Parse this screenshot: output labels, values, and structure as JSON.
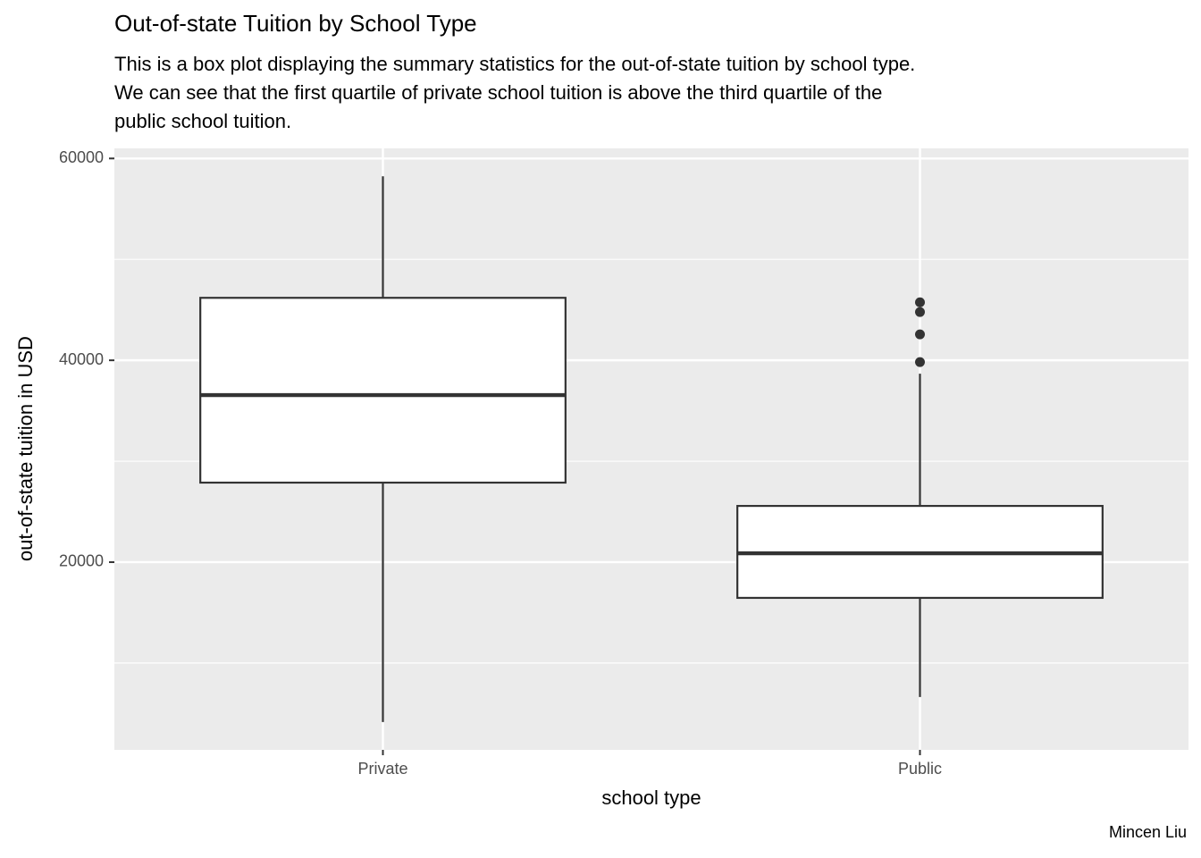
{
  "chart_data": {
    "type": "box",
    "title": "Out-of-state Tuition by School Type",
    "subtitle_lines": [
      "This is a box plot displaying the summary statistics for the out-of-state tuition by school type.",
      "We can see that the first quartile of private school tuition is above the third quartile of the",
      "public school tuition."
    ],
    "caption": "Mincen Liu",
    "x_label": "school type",
    "y_label": "out-of-state tuition in USD",
    "categories": [
      "Private",
      "Public"
    ],
    "boxes": [
      {
        "whislo": 4160,
        "q1": 27880,
        "med": 36550,
        "q3": 46190,
        "whishi": 58230,
        "outliers": []
      },
      {
        "whislo": 6640,
        "q1": 16460,
        "med": 20880,
        "q3": 25570,
        "whishi": 38670,
        "outliers": [
          39820,
          42570,
          44780,
          45750
        ]
      }
    ],
    "color": "#333333",
    "fill": "#ffffff",
    "ylim": [
      1400,
      61000
    ],
    "yticks": [
      20000,
      40000,
      60000
    ],
    "minor_yticks": [
      10000,
      30000,
      50000
    ],
    "grid": true
  }
}
